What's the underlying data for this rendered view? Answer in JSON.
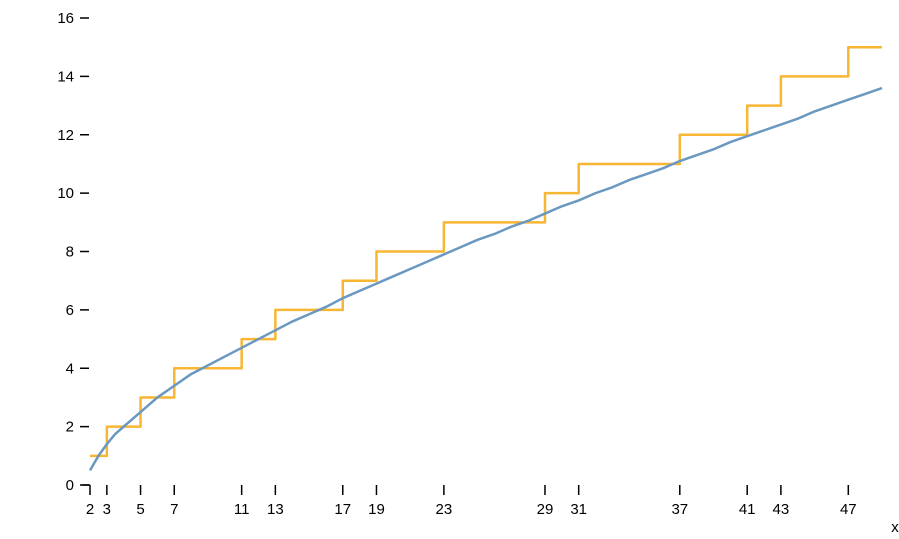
{
  "chart_data": {
    "type": "line",
    "title": "",
    "xlabel": "x",
    "ylabel": "",
    "xlim": [
      2,
      49
    ],
    "ylim": [
      0,
      16
    ],
    "x_ticks": [
      2,
      3,
      5,
      7,
      11,
      13,
      17,
      19,
      23,
      29,
      31,
      37,
      41,
      43,
      47
    ],
    "y_ticks": [
      0,
      2,
      4,
      6,
      8,
      10,
      12,
      14,
      16
    ],
    "grid": false,
    "legend": "none",
    "series": [
      {
        "kind": "step",
        "color": "#f7b633",
        "points": [
          [
            2,
            1
          ],
          [
            3,
            2
          ],
          [
            5,
            3
          ],
          [
            7,
            4
          ],
          [
            11,
            5
          ],
          [
            13,
            6
          ],
          [
            17,
            7
          ],
          [
            19,
            8
          ],
          [
            23,
            9
          ],
          [
            29,
            10
          ],
          [
            31,
            11
          ],
          [
            37,
            12
          ],
          [
            41,
            13
          ],
          [
            43,
            14
          ],
          [
            47,
            15
          ],
          [
            49,
            15
          ]
        ]
      },
      {
        "kind": "line",
        "color": "#6b98c0",
        "points": [
          [
            2,
            0.5
          ],
          [
            2.5,
            1.0
          ],
          [
            3,
            1.4
          ],
          [
            3.5,
            1.75
          ],
          [
            4,
            2.0
          ],
          [
            4.5,
            2.25
          ],
          [
            5,
            2.5
          ],
          [
            6,
            3.0
          ],
          [
            7,
            3.4
          ],
          [
            8,
            3.8
          ],
          [
            9,
            4.1
          ],
          [
            10,
            4.4
          ],
          [
            11,
            4.7
          ],
          [
            12,
            5.0
          ],
          [
            13,
            5.3
          ],
          [
            14,
            5.6
          ],
          [
            15,
            5.85
          ],
          [
            16,
            6.1
          ],
          [
            17,
            6.4
          ],
          [
            18,
            6.65
          ],
          [
            19,
            6.9
          ],
          [
            20,
            7.15
          ],
          [
            21,
            7.4
          ],
          [
            22,
            7.65
          ],
          [
            23,
            7.9
          ],
          [
            24,
            8.15
          ],
          [
            25,
            8.4
          ],
          [
            26,
            8.6
          ],
          [
            27,
            8.85
          ],
          [
            28,
            9.05
          ],
          [
            29,
            9.3
          ],
          [
            30,
            9.55
          ],
          [
            31,
            9.75
          ],
          [
            32,
            10.0
          ],
          [
            33,
            10.2
          ],
          [
            34,
            10.45
          ],
          [
            35,
            10.65
          ],
          [
            36,
            10.85
          ],
          [
            37,
            11.1
          ],
          [
            38,
            11.3
          ],
          [
            39,
            11.5
          ],
          [
            40,
            11.75
          ],
          [
            41,
            11.95
          ],
          [
            42,
            12.15
          ],
          [
            43,
            12.35
          ],
          [
            44,
            12.55
          ],
          [
            45,
            12.8
          ],
          [
            46,
            13.0
          ],
          [
            47,
            13.2
          ],
          [
            48,
            13.4
          ],
          [
            49,
            13.6
          ]
        ]
      }
    ]
  }
}
